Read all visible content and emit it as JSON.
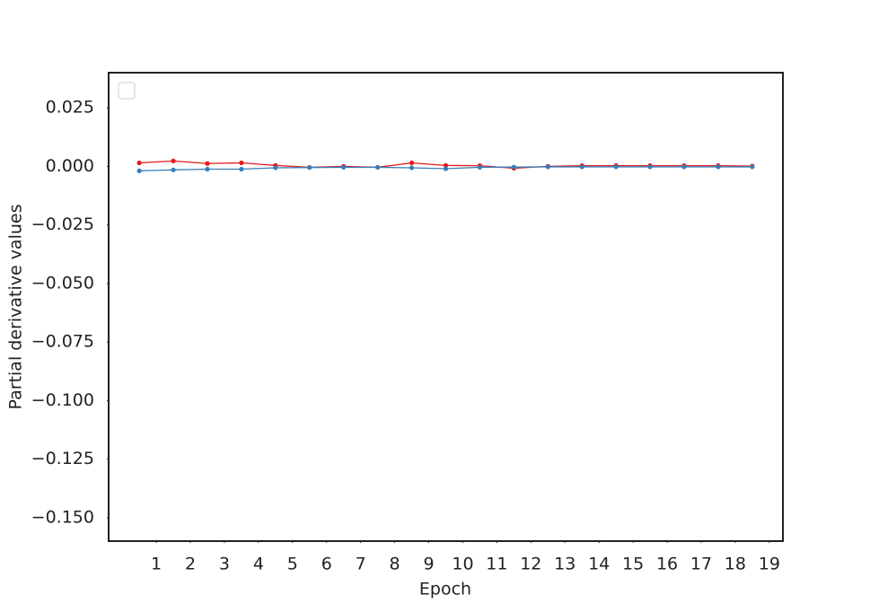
{
  "chart_data": {
    "type": "line",
    "x_label": "Epoch",
    "y_label": "Partial derivative values",
    "x": [
      0.5,
      1.5,
      2.5,
      3.5,
      4.5,
      5.5,
      6.5,
      7.5,
      8.5,
      9.5,
      10.5,
      11.5,
      12.5,
      13.5,
      14.5,
      15.5,
      16.5,
      17.5,
      18.5
    ],
    "series": [
      {
        "color": "#e41a1c",
        "values": [
          0.0015,
          0.0023,
          0.0012,
          0.0015,
          0.0004,
          -0.0004,
          0.0,
          -0.0004,
          0.0015,
          0.0004,
          0.0003,
          -0.0008,
          0.0,
          0.0003,
          0.0003,
          0.0003,
          0.0003,
          0.0003,
          0.0001
        ]
      },
      {
        "color": "#377eb8",
        "values": [
          -0.0019,
          -0.0015,
          -0.0012,
          -0.0012,
          -0.0006,
          -0.0005,
          -0.0004,
          -0.0004,
          -0.0006,
          -0.001,
          -0.0004,
          -0.0003,
          -0.0002,
          -0.0002,
          -0.0002,
          -0.0002,
          -0.0002,
          -0.0002,
          -0.0002
        ]
      }
    ],
    "xlim": [
      -0.4,
      19.4
    ],
    "xticks": [
      1,
      2,
      3,
      4,
      5,
      6,
      7,
      8,
      9,
      10,
      11,
      12,
      13,
      14,
      15,
      16,
      17,
      18,
      19
    ],
    "ylim": [
      -0.16,
      0.04
    ],
    "yticks": [
      {
        "value": 0.025,
        "label": "0.025"
      },
      {
        "value": 0,
        "label": "0.000"
      },
      {
        "value": -0.025,
        "label": "−0.025"
      },
      {
        "value": -0.05,
        "label": "−0.050"
      },
      {
        "value": -0.075,
        "label": "−0.075"
      },
      {
        "value": -0.1,
        "label": "−0.100"
      },
      {
        "value": -0.125,
        "label": "−0.125"
      },
      {
        "value": -0.15,
        "label": "−0.150"
      }
    ],
    "grid": false
  }
}
